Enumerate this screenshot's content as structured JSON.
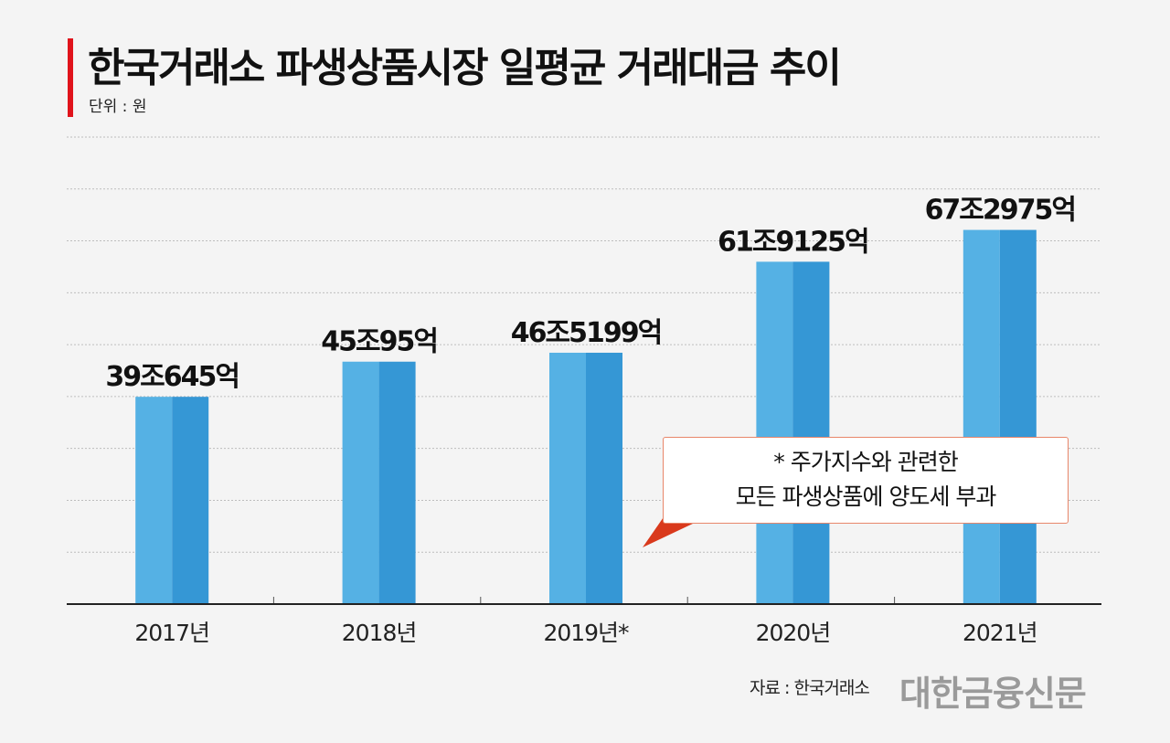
{
  "title": "한국거래소 파생상품시장 일평균 거래대금 추이",
  "unit_label": "단위 : 원",
  "source": "자료 : 한국거래소",
  "logo": "대한금융신문",
  "callout": {
    "line1": "* 주가지수와 관련한",
    "line2": "모든 파생상품에 양도세 부과"
  },
  "colors": {
    "bar_light": "#55b1e4",
    "bar_dark": "#3597d5",
    "accent": "#e0131b",
    "callout_tail": "#d9391c"
  },
  "chart_data": {
    "type": "bar",
    "title": "한국거래소 파생상품시장 일평균 거래대금 추이",
    "xlabel": "",
    "ylabel": "단위 : 원",
    "categories": [
      "2017년",
      "2018년",
      "2019년*",
      "2020년",
      "2021년"
    ],
    "values": [
      39.0645,
      45.0095,
      46.5199,
      61.9125,
      67.2975
    ],
    "value_unit": "조원",
    "data_labels": [
      "39조645억",
      "45조95억",
      "46조5199억",
      "61조9125억",
      "67조2975억"
    ],
    "ylim": [
      4,
      83
    ],
    "grid": true,
    "legend": "none"
  }
}
